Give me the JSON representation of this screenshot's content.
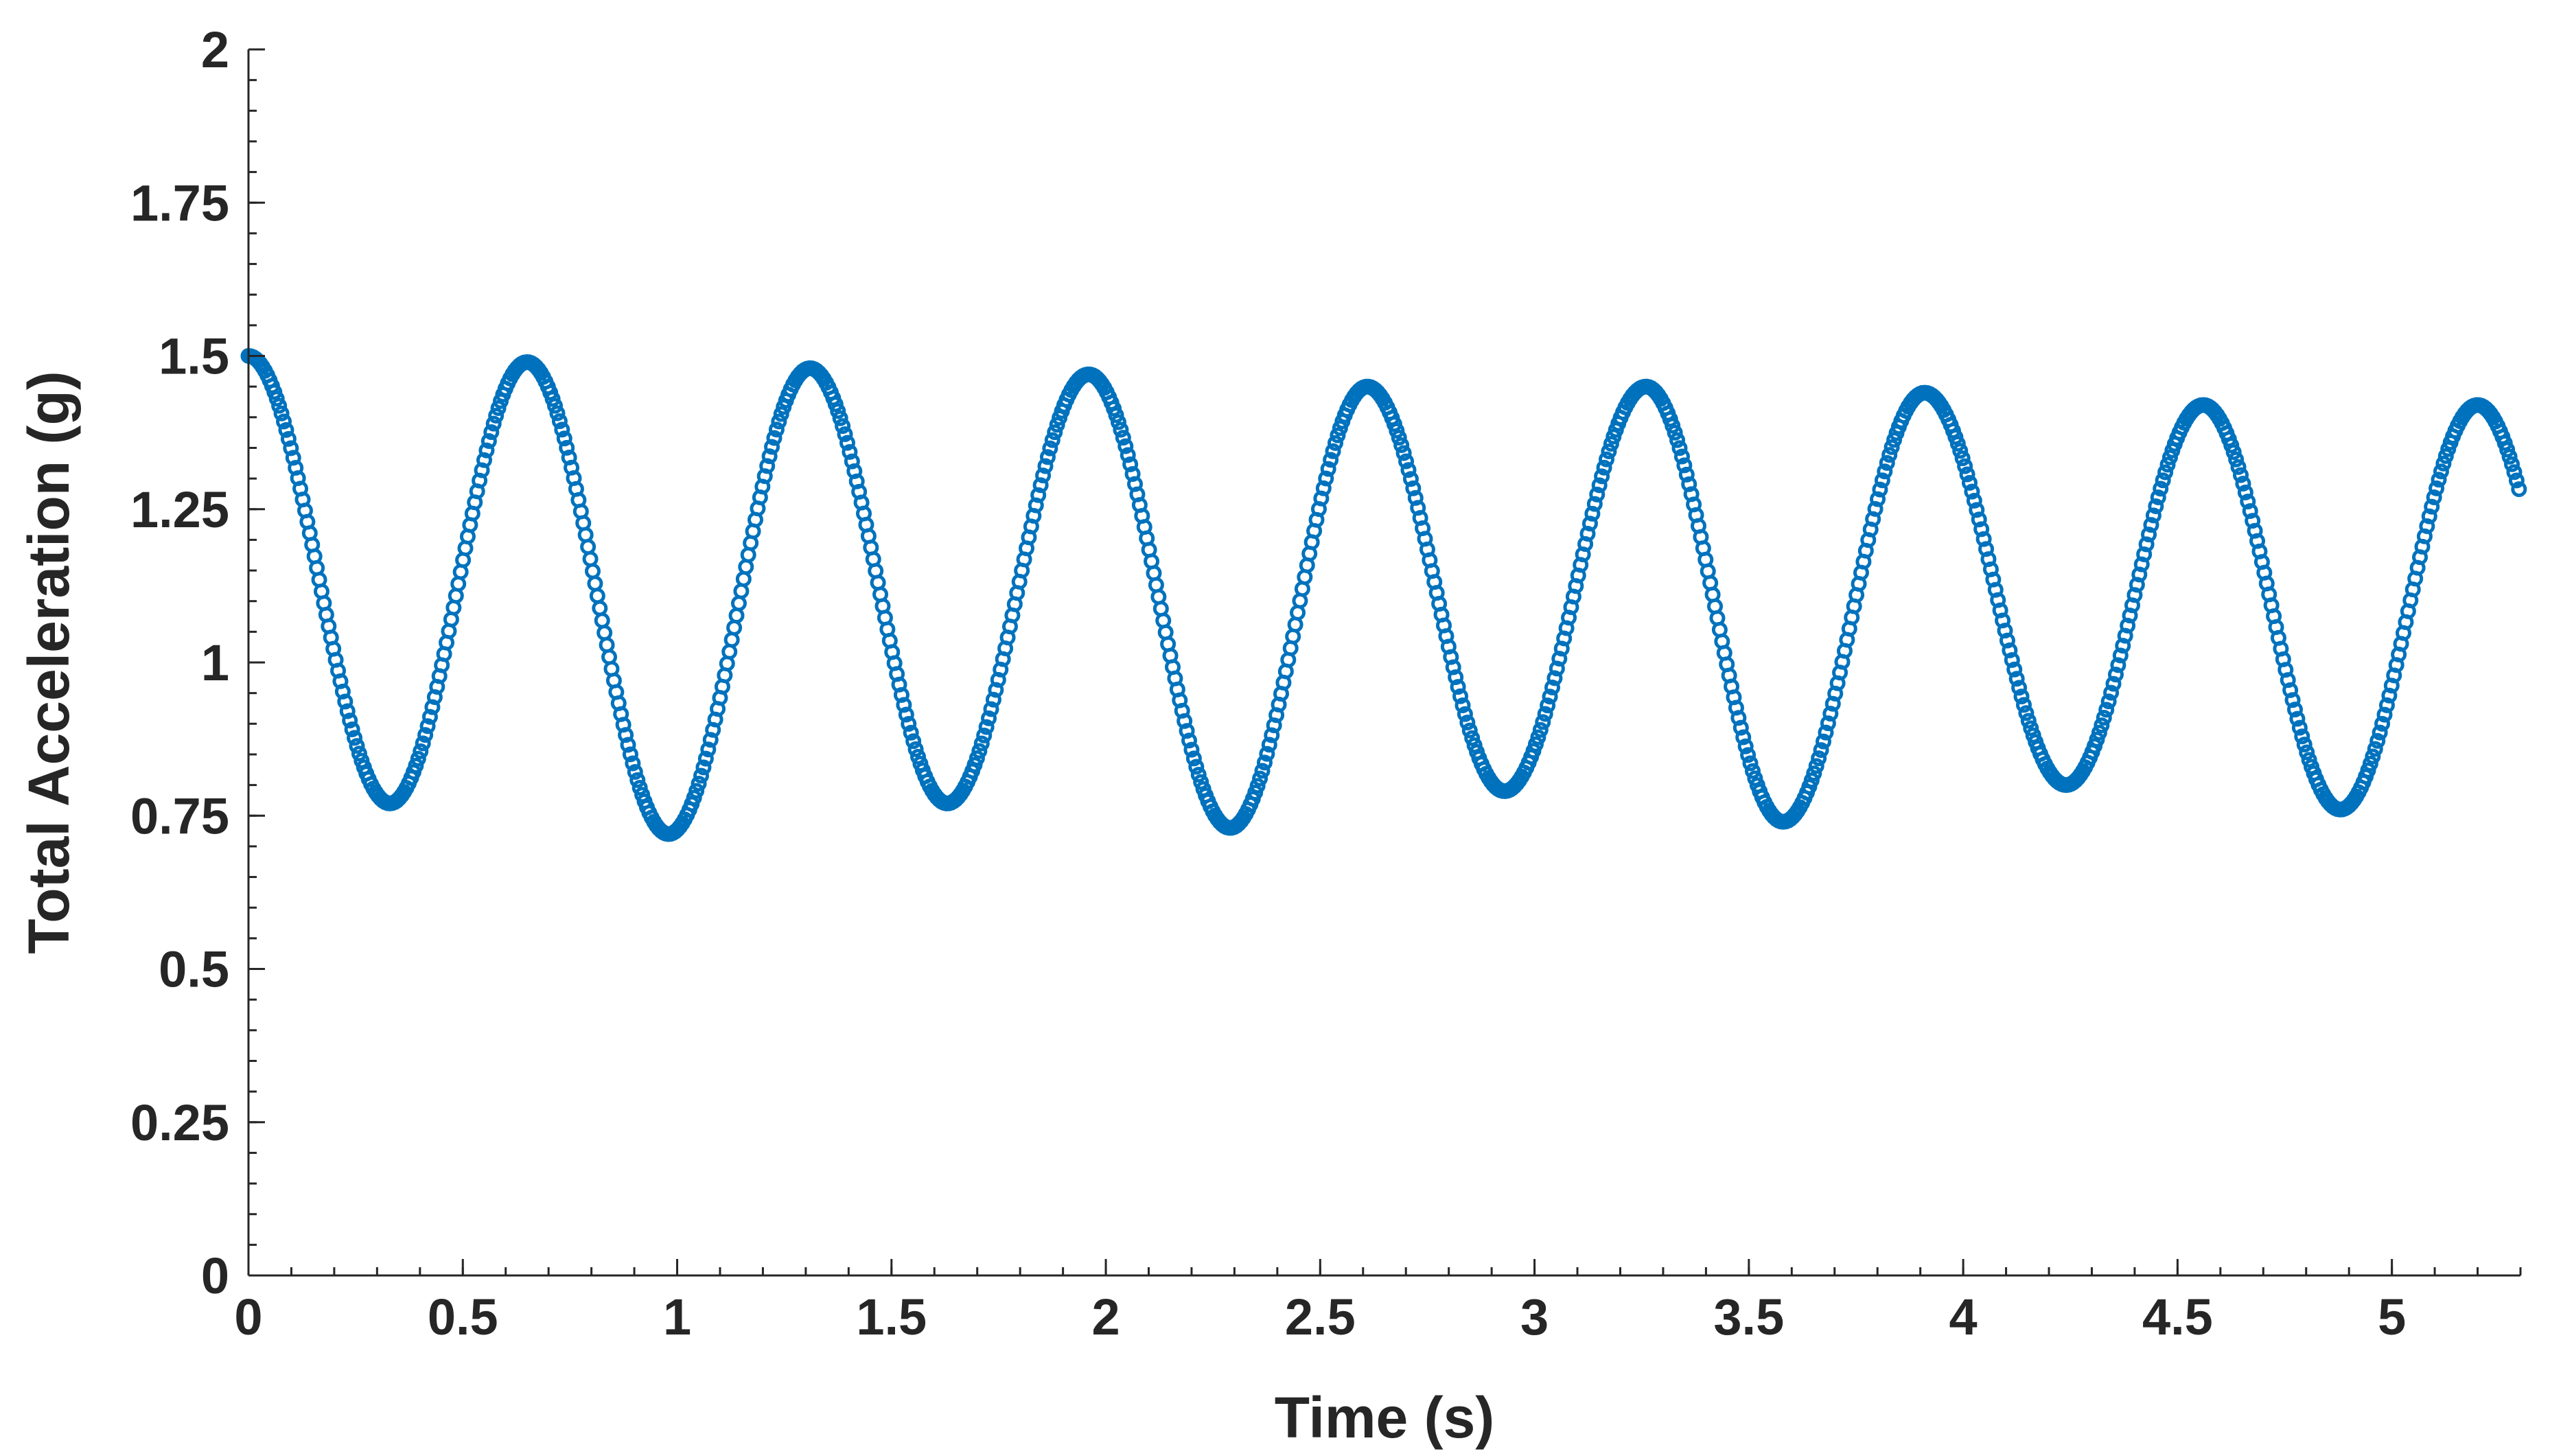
{
  "chart_data": {
    "type": "scatter",
    "title": "",
    "xlabel": "Time (s)",
    "ylabel": "Total Acceleration (g)",
    "xlim": [
      0,
      5.3
    ],
    "ylim": [
      0,
      2
    ],
    "x_ticks": [
      0,
      0.5,
      1,
      1.5,
      2,
      2.5,
      3,
      3.5,
      4,
      4.5,
      5
    ],
    "x_tick_labels": [
      "0",
      "0.5",
      "1",
      "1.5",
      "2",
      "2.5",
      "3",
      "3.5",
      "4",
      "4.5",
      "5"
    ],
    "y_ticks": [
      0,
      0.25,
      0.5,
      0.75,
      1,
      1.25,
      1.5,
      1.75,
      2
    ],
    "y_tick_labels": [
      "0",
      "0.25",
      "0.5",
      "0.75",
      "1",
      "1.25",
      "1.5",
      "1.75",
      "2"
    ],
    "grid": false,
    "marker": "open-circle",
    "series": [
      {
        "color": "#0072BD",
        "description": "damped oscillation sampled densely",
        "peaks": [
          [
            0.0,
            1.5
          ],
          [
            0.65,
            1.49
          ],
          [
            1.31,
            1.48
          ],
          [
            1.96,
            1.47
          ],
          [
            2.61,
            1.45
          ],
          [
            3.26,
            1.45
          ],
          [
            3.91,
            1.44
          ],
          [
            4.56,
            1.42
          ],
          [
            5.2,
            1.42
          ]
        ],
        "troughs": [
          [
            0.33,
            0.77
          ],
          [
            0.98,
            0.72
          ],
          [
            1.63,
            0.77
          ],
          [
            2.29,
            0.73
          ],
          [
            2.93,
            0.79
          ],
          [
            3.58,
            0.74
          ],
          [
            4.24,
            0.8
          ],
          [
            4.88,
            0.76
          ]
        ],
        "end_point": [
          5.3,
          1.29
        ],
        "sample_step": 0.0055
      }
    ]
  }
}
